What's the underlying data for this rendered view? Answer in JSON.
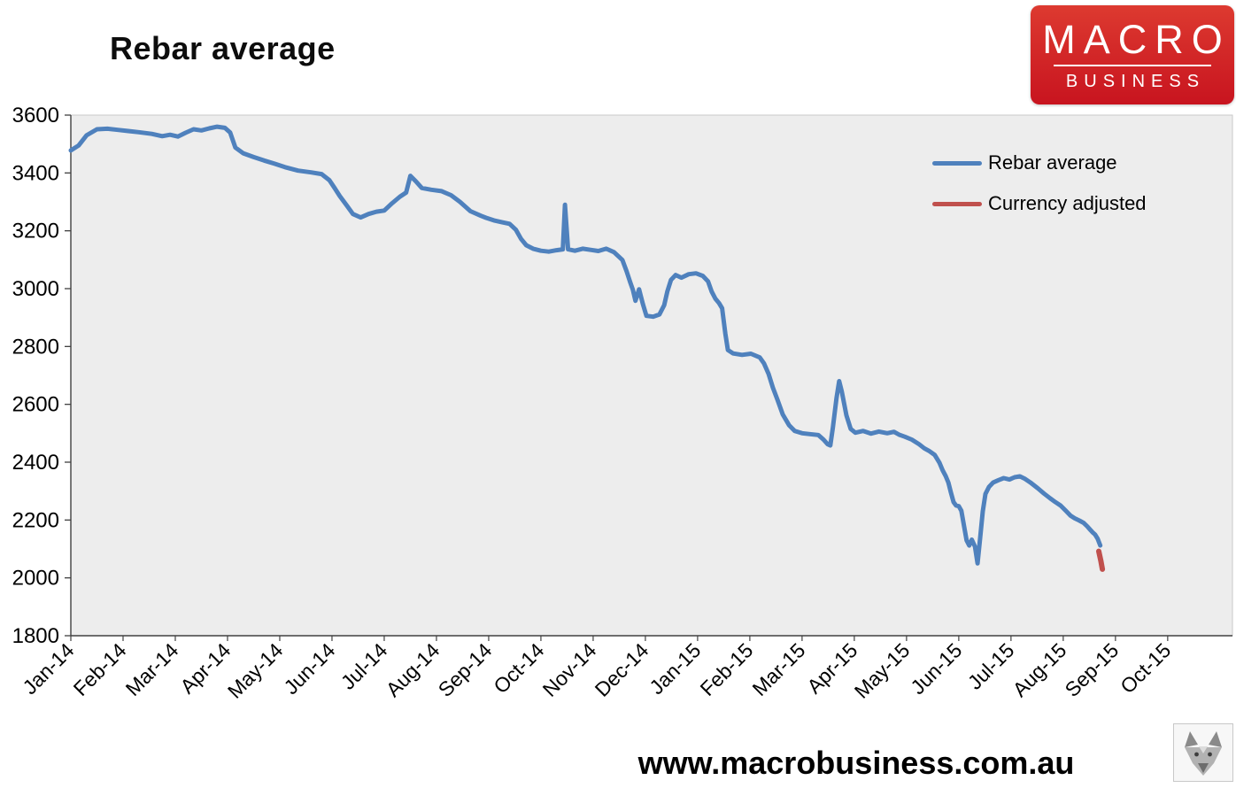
{
  "logo": {
    "line1": "MACRO",
    "line2": "BUSINESS",
    "bg_color": "#cf1e2c",
    "text_color": "#ffffff"
  },
  "footer": {
    "url": "www.macrobusiness.com.au"
  },
  "chart_data": {
    "type": "line",
    "title": "Rebar average",
    "x_labels": [
      "Jan-14",
      "Feb-14",
      "Mar-14",
      "Apr-14",
      "May-14",
      "Jun-14",
      "Jul-14",
      "Aug-14",
      "Sep-14",
      "Oct-14",
      "Nov-14",
      "Dec-14",
      "Jan-15",
      "Feb-15",
      "Mar-15",
      "Apr-15",
      "May-15",
      "Jun-15",
      "Jul-15",
      "Aug-15",
      "Sep-15",
      "Oct-15"
    ],
    "x_unit": "months since Jan-14",
    "x_span_months": 22.24,
    "ylim": [
      1800,
      3600
    ],
    "ytick_step": 200,
    "grid": false,
    "plot_bg": "#ededed",
    "axis_color": "#404040",
    "frame_color": "#c9c9c9",
    "legend_position": "top-right",
    "series": [
      {
        "name": "Rebar average",
        "color": "#4f81bd",
        "stroke_width": 5,
        "points": [
          [
            0.0,
            3478
          ],
          [
            0.15,
            3495
          ],
          [
            0.3,
            3530
          ],
          [
            0.5,
            3551
          ],
          [
            0.7,
            3553
          ],
          [
            0.9,
            3549
          ],
          [
            1.1,
            3545
          ],
          [
            1.3,
            3541
          ],
          [
            1.55,
            3535
          ],
          [
            1.75,
            3527
          ],
          [
            1.9,
            3532
          ],
          [
            2.05,
            3526
          ],
          [
            2.2,
            3539
          ],
          [
            2.35,
            3551
          ],
          [
            2.5,
            3547
          ],
          [
            2.65,
            3554
          ],
          [
            2.8,
            3560
          ],
          [
            2.95,
            3556
          ],
          [
            3.05,
            3540
          ],
          [
            3.15,
            3488
          ],
          [
            3.3,
            3468
          ],
          [
            3.5,
            3455
          ],
          [
            3.7,
            3443
          ],
          [
            3.9,
            3432
          ],
          [
            4.1,
            3420
          ],
          [
            4.35,
            3408
          ],
          [
            4.6,
            3402
          ],
          [
            4.8,
            3396
          ],
          [
            4.95,
            3375
          ],
          [
            5.05,
            3348
          ],
          [
            5.15,
            3320
          ],
          [
            5.28,
            3288
          ],
          [
            5.4,
            3258
          ],
          [
            5.55,
            3246
          ],
          [
            5.7,
            3258
          ],
          [
            5.85,
            3266
          ],
          [
            6.0,
            3270
          ],
          [
            6.15,
            3295
          ],
          [
            6.3,
            3318
          ],
          [
            6.42,
            3332
          ],
          [
            6.5,
            3390
          ],
          [
            6.6,
            3372
          ],
          [
            6.72,
            3348
          ],
          [
            6.9,
            3342
          ],
          [
            7.1,
            3337
          ],
          [
            7.28,
            3323
          ],
          [
            7.45,
            3300
          ],
          [
            7.65,
            3268
          ],
          [
            7.85,
            3252
          ],
          [
            7.95,
            3245
          ],
          [
            8.1,
            3236
          ],
          [
            8.25,
            3230
          ],
          [
            8.4,
            3224
          ],
          [
            8.52,
            3204
          ],
          [
            8.62,
            3172
          ],
          [
            8.72,
            3150
          ],
          [
            8.85,
            3138
          ],
          [
            9.0,
            3131
          ],
          [
            9.15,
            3128
          ],
          [
            9.3,
            3133
          ],
          [
            9.42,
            3136
          ],
          [
            9.46,
            3290
          ],
          [
            9.52,
            3136
          ],
          [
            9.65,
            3131
          ],
          [
            9.8,
            3138
          ],
          [
            9.95,
            3134
          ],
          [
            10.1,
            3130
          ],
          [
            10.25,
            3138
          ],
          [
            10.4,
            3126
          ],
          [
            10.56,
            3099
          ],
          [
            10.64,
            3060
          ],
          [
            10.71,
            3022
          ],
          [
            10.76,
            2996
          ],
          [
            10.81,
            2958
          ],
          [
            10.88,
            2998
          ],
          [
            10.95,
            2948
          ],
          [
            11.02,
            2906
          ],
          [
            11.15,
            2903
          ],
          [
            11.27,
            2911
          ],
          [
            11.36,
            2943
          ],
          [
            11.42,
            2990
          ],
          [
            11.49,
            3030
          ],
          [
            11.58,
            3047
          ],
          [
            11.69,
            3038
          ],
          [
            11.83,
            3050
          ],
          [
            11.97,
            3053
          ],
          [
            12.1,
            3044
          ],
          [
            12.2,
            3025
          ],
          [
            12.27,
            2990
          ],
          [
            12.34,
            2965
          ],
          [
            12.41,
            2950
          ],
          [
            12.47,
            2932
          ],
          [
            12.53,
            2845
          ],
          [
            12.58,
            2788
          ],
          [
            12.68,
            2776
          ],
          [
            12.85,
            2771
          ],
          [
            13.02,
            2775
          ],
          [
            13.19,
            2762
          ],
          [
            13.27,
            2742
          ],
          [
            13.36,
            2705
          ],
          [
            13.44,
            2658
          ],
          [
            13.53,
            2615
          ],
          [
            13.63,
            2565
          ],
          [
            13.75,
            2528
          ],
          [
            13.86,
            2508
          ],
          [
            14.0,
            2500
          ],
          [
            14.15,
            2497
          ],
          [
            14.31,
            2494
          ],
          [
            14.41,
            2478
          ],
          [
            14.49,
            2462
          ],
          [
            14.54,
            2458
          ],
          [
            14.59,
            2520
          ],
          [
            14.66,
            2622
          ],
          [
            14.71,
            2680
          ],
          [
            14.76,
            2645
          ],
          [
            14.85,
            2562
          ],
          [
            14.93,
            2515
          ],
          [
            15.02,
            2502
          ],
          [
            15.17,
            2508
          ],
          [
            15.32,
            2499
          ],
          [
            15.47,
            2506
          ],
          [
            15.63,
            2500
          ],
          [
            15.76,
            2505
          ],
          [
            15.86,
            2495
          ],
          [
            15.97,
            2488
          ],
          [
            16.1,
            2478
          ],
          [
            16.24,
            2462
          ],
          [
            16.34,
            2448
          ],
          [
            16.44,
            2438
          ],
          [
            16.54,
            2425
          ],
          [
            16.63,
            2398
          ],
          [
            16.69,
            2372
          ],
          [
            16.75,
            2352
          ],
          [
            16.8,
            2330
          ],
          [
            16.85,
            2295
          ],
          [
            16.9,
            2262
          ],
          [
            16.95,
            2250
          ],
          [
            17.0,
            2248
          ],
          [
            17.05,
            2232
          ],
          [
            17.1,
            2180
          ],
          [
            17.15,
            2130
          ],
          [
            17.2,
            2112
          ],
          [
            17.25,
            2132
          ],
          [
            17.31,
            2108
          ],
          [
            17.36,
            2050
          ],
          [
            17.41,
            2140
          ],
          [
            17.46,
            2230
          ],
          [
            17.51,
            2290
          ],
          [
            17.58,
            2315
          ],
          [
            17.66,
            2330
          ],
          [
            17.76,
            2338
          ],
          [
            17.86,
            2345
          ],
          [
            17.97,
            2340
          ],
          [
            18.07,
            2348
          ],
          [
            18.17,
            2351
          ],
          [
            18.27,
            2342
          ],
          [
            18.37,
            2330
          ],
          [
            18.51,
            2310
          ],
          [
            18.63,
            2292
          ],
          [
            18.75,
            2275
          ],
          [
            18.85,
            2262
          ],
          [
            18.95,
            2250
          ],
          [
            19.05,
            2232
          ],
          [
            19.14,
            2215
          ],
          [
            19.22,
            2206
          ],
          [
            19.31,
            2198
          ],
          [
            19.39,
            2190
          ],
          [
            19.46,
            2178
          ],
          [
            19.51,
            2168
          ],
          [
            19.56,
            2158
          ],
          [
            19.61,
            2150
          ],
          [
            19.66,
            2135
          ],
          [
            19.71,
            2112
          ]
        ]
      },
      {
        "name": "Currency adjusted",
        "color": "#c0504d",
        "stroke_width": 6,
        "points": [
          [
            19.68,
            2092
          ],
          [
            19.72,
            2060
          ],
          [
            19.75,
            2030
          ]
        ]
      }
    ]
  }
}
